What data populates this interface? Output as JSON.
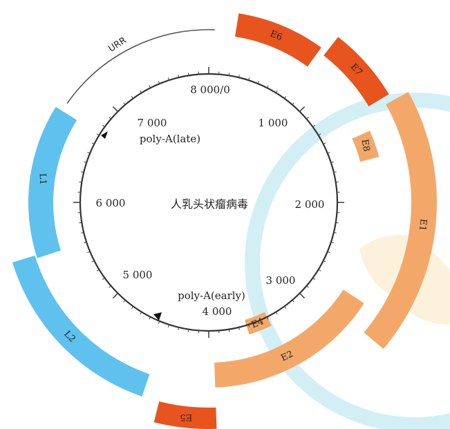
{
  "diagram": {
    "center_title": "人乳头状瘤病毒",
    "position_labels": [
      "8 000/0",
      "1 000",
      "2 000",
      "3 000",
      "4 000",
      "5 000",
      "6 000",
      "7 000"
    ],
    "markers": [
      {
        "label": "poly-A(late)"
      },
      {
        "label": "poly-A(early)"
      }
    ],
    "urr_label": "URR",
    "segments": [
      {
        "id": "E6",
        "label": "E6",
        "color": "#e8541e"
      },
      {
        "id": "E7",
        "label": "E7",
        "color": "#e8541e"
      },
      {
        "id": "E8",
        "label": "E8",
        "color": "#f3a86a"
      },
      {
        "id": "E1",
        "label": "E1",
        "color": "#f3a86a"
      },
      {
        "id": "E2",
        "label": "E2",
        "color": "#f3a86a"
      },
      {
        "id": "E4",
        "label": "E4",
        "color": "#f3a86a"
      },
      {
        "id": "E5",
        "label": "E5",
        "color": "#e8541e"
      },
      {
        "id": "L2",
        "label": "L2",
        "color": "#5ec1ee"
      },
      {
        "id": "L1",
        "label": "L1",
        "color": "#5ec1ee"
      }
    ]
  }
}
